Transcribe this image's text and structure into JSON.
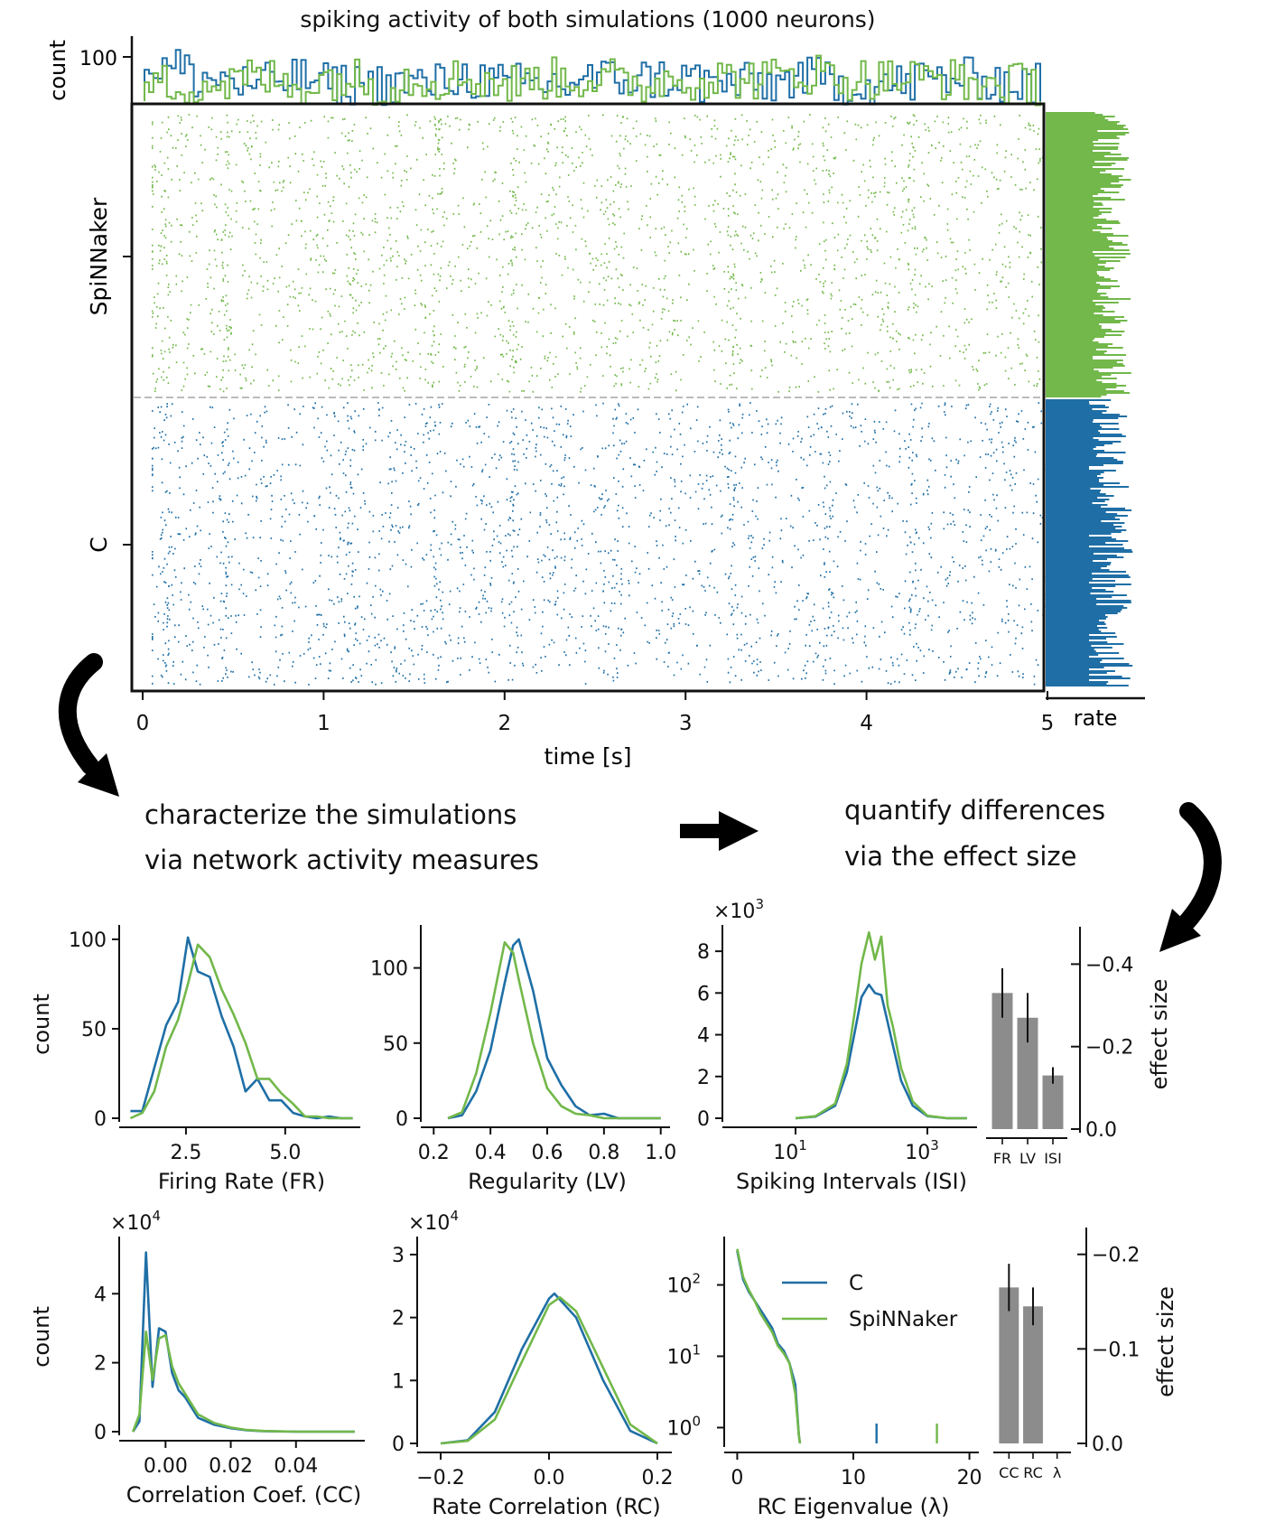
{
  "colors": {
    "c": "#1f6fa6",
    "spinnaker": "#72b84a",
    "bar": "#8c8c8c",
    "axis": "#111111",
    "arrow": "#000000"
  },
  "annotations": {
    "step1_line1": "characterize the simulations",
    "step1_line2": "via network activity measures",
    "step2_line1": "quantify differences",
    "step2_line2": "via the effect size"
  },
  "raster": {
    "title": "spiking activity of both simulations (1000 neurons)",
    "xlabel": "time [s]",
    "xticks": [
      "0",
      "1",
      "2",
      "3",
      "4",
      "5"
    ],
    "count_label": "count",
    "count_tick": "100",
    "rate_label": "rate",
    "ylabels": [
      "SpiNNaker",
      "C"
    ]
  },
  "panels": {
    "fr": {
      "xlabel": "Firing Rate (FR)",
      "ylabel": "count",
      "xticks": [
        "2.5",
        "5.0"
      ],
      "yticks": [
        "0",
        "50",
        "100"
      ]
    },
    "lv": {
      "xlabel": "Regularity (LV)",
      "xticks": [
        "0.2",
        "0.4",
        "0.6",
        "0.8",
        "1.0"
      ],
      "yticks": [
        "0",
        "50",
        "100"
      ]
    },
    "isi": {
      "xlabel": "Spiking Intervals (ISI)",
      "multiplier": "×10",
      "multiplier_exp": "3",
      "xticks_base": [
        "10",
        "10"
      ],
      "xticks_exp": [
        "1",
        "3"
      ],
      "yticks": [
        "0",
        "2",
        "4",
        "6",
        "8"
      ]
    },
    "es1": {
      "ylabel": "effect size",
      "categories": [
        "FR",
        "LV",
        "ISI"
      ],
      "yticks": [
        "0.0",
        "−0.2",
        "−0.4"
      ]
    },
    "cc": {
      "xlabel": "Correlation Coef. (CC)",
      "ylabel": "count",
      "multiplier": "×10",
      "multiplier_exp": "4",
      "xticks": [
        "0.00",
        "0.02",
        "0.04"
      ],
      "yticks": [
        "0",
        "2",
        "4"
      ]
    },
    "rc": {
      "xlabel": "Rate Correlation (RC)",
      "multiplier": "×10",
      "multiplier_exp": "4",
      "xticks": [
        "−0.2",
        "0.0",
        "0.2"
      ],
      "yticks": [
        "0",
        "1",
        "2",
        "3"
      ]
    },
    "eig": {
      "xlabel": "RC Eigenvalue (λ)",
      "xticks": [
        "0",
        "10",
        "20"
      ],
      "yticks_base": [
        "10",
        "10",
        "10"
      ],
      "yticks_exp": [
        "0",
        "1",
        "2"
      ],
      "legend": [
        "C",
        "SpiNNaker"
      ]
    },
    "es2": {
      "ylabel": "effect size",
      "categories": [
        "CC",
        "RC",
        "λ"
      ],
      "yticks": [
        "0.0",
        "−0.1",
        "−0.2"
      ]
    }
  },
  "chart_data": [
    {
      "type": "scatter",
      "title": "spiking activity of both simulations (1000 neurons)",
      "xlabel": "time [s]",
      "xlim": [
        0,
        5
      ],
      "series": [
        {
          "name": "SpiNNaker",
          "neurons": 500
        },
        {
          "name": "C",
          "neurons": 500
        }
      ],
      "count_histogram": {
        "ytick": 100,
        "x": [
          0.0,
          0.25,
          0.5,
          0.75,
          1.0,
          1.25,
          1.5,
          1.75,
          2.0,
          2.25,
          2.5,
          2.75,
          3.0,
          3.25,
          3.5,
          3.75,
          4.0,
          4.25,
          4.5,
          4.75,
          5.0
        ],
        "C": [
          98,
          96,
          95,
          96,
          95,
          95,
          95,
          96,
          95,
          95,
          96,
          96,
          96,
          95,
          95,
          96,
          95,
          95,
          96,
          96,
          95
        ],
        "SpiNNaker": [
          95,
          95,
          96,
          95,
          96,
          95,
          96,
          96,
          95,
          96,
          96,
          95,
          96,
          96,
          96,
          97,
          96,
          96,
          96,
          95,
          95
        ]
      }
    },
    {
      "type": "line",
      "xlabel": "Firing Rate (FR)",
      "ylabel": "count",
      "ylim": [
        0,
        105
      ],
      "xlim": [
        1.0,
        6.8
      ],
      "series": [
        {
          "name": "C",
          "x": [
            1.1,
            1.4,
            1.7,
            2.0,
            2.3,
            2.55,
            2.8,
            3.1,
            3.4,
            3.7,
            4.0,
            4.3,
            4.6,
            4.9,
            5.2,
            5.5,
            5.8,
            6.1,
            6.4,
            6.7
          ],
          "y": [
            4,
            4,
            28,
            52,
            65,
            101,
            82,
            79,
            57,
            40,
            15,
            22,
            10,
            10,
            3,
            1,
            0,
            1,
            0,
            0
          ]
        },
        {
          "name": "SpiNNaker",
          "x": [
            1.1,
            1.4,
            1.7,
            2.0,
            2.3,
            2.55,
            2.8,
            3.1,
            3.4,
            3.7,
            4.0,
            4.3,
            4.6,
            4.9,
            5.2,
            5.5,
            5.8,
            6.1,
            6.4,
            6.7
          ],
          "y": [
            0,
            3,
            15,
            40,
            55,
            75,
            97,
            90,
            72,
            58,
            42,
            22,
            22,
            14,
            8,
            1,
            1,
            0,
            0,
            0
          ]
        }
      ]
    },
    {
      "type": "line",
      "xlabel": "Regularity (LV)",
      "ylim": [
        0,
        125
      ],
      "xlim": [
        0.18,
        1.02
      ],
      "series": [
        {
          "name": "C",
          "x": [
            0.25,
            0.3,
            0.35,
            0.4,
            0.45,
            0.48,
            0.5,
            0.55,
            0.6,
            0.65,
            0.7,
            0.75,
            0.8,
            0.85,
            0.9,
            0.95,
            1.0
          ],
          "y": [
            0,
            2,
            18,
            45,
            90,
            115,
            119,
            85,
            40,
            22,
            8,
            2,
            3,
            0,
            0,
            0,
            0
          ]
        },
        {
          "name": "SpiNNaker",
          "x": [
            0.25,
            0.3,
            0.35,
            0.4,
            0.45,
            0.48,
            0.5,
            0.55,
            0.6,
            0.65,
            0.7,
            0.75,
            0.8,
            0.85,
            0.9,
            0.95,
            1.0
          ],
          "y": [
            0,
            4,
            30,
            70,
            117,
            110,
            92,
            50,
            20,
            8,
            3,
            2,
            0,
            0,
            0,
            0,
            0
          ]
        }
      ]
    },
    {
      "type": "line",
      "xlabel": "Spiking Intervals (ISI)",
      "x_scale": "log",
      "ylim": [
        0,
        9000
      ],
      "xlim": [
        1,
        5000
      ],
      "series": [
        {
          "name": "C",
          "x": [
            10,
            20,
            40,
            60,
            80,
            100,
            130,
            160,
            200,
            250,
            300,
            400,
            600,
            1000,
            2000,
            4000
          ],
          "y": [
            0,
            80,
            600,
            2200,
            4200,
            5800,
            6400,
            6000,
            5900,
            4600,
            3500,
            1800,
            600,
            100,
            0,
            0
          ]
        },
        {
          "name": "SpiNNaker",
          "x": [
            10,
            20,
            40,
            60,
            80,
            100,
            130,
            160,
            200,
            250,
            300,
            400,
            600,
            1000,
            2000,
            4000
          ],
          "y": [
            0,
            100,
            700,
            2600,
            5200,
            7400,
            8900,
            7600,
            8700,
            5400,
            4400,
            2400,
            800,
            120,
            0,
            0
          ]
        }
      ]
    },
    {
      "type": "bar",
      "ylabel": "effect size",
      "categories": [
        "FR",
        "LV",
        "ISI"
      ],
      "values": [
        -0.33,
        -0.27,
        -0.13
      ],
      "errors": [
        0.06,
        0.06,
        0.02
      ],
      "ylim": [
        0,
        -0.46
      ]
    },
    {
      "type": "line",
      "xlabel": "Correlation Coef. (CC)",
      "ylabel": "count",
      "ylim": [
        0,
        55000
      ],
      "xlim": [
        -0.012,
        0.06
      ],
      "series": [
        {
          "name": "C",
          "x": [
            -0.01,
            -0.008,
            -0.006,
            -0.004,
            -0.002,
            0.0,
            0.002,
            0.004,
            0.006,
            0.008,
            0.01,
            0.015,
            0.02,
            0.025,
            0.03,
            0.04,
            0.05,
            0.058
          ],
          "y": [
            0,
            3000,
            52000,
            13000,
            30000,
            29000,
            17000,
            12000,
            10000,
            7000,
            4000,
            2000,
            1000,
            400,
            150,
            0,
            0,
            0
          ]
        },
        {
          "name": "SpiNNaker",
          "x": [
            -0.01,
            -0.008,
            -0.006,
            -0.004,
            -0.002,
            0.0,
            0.002,
            0.004,
            0.006,
            0.008,
            0.01,
            0.015,
            0.02,
            0.025,
            0.03,
            0.04,
            0.05,
            0.058
          ],
          "y": [
            0,
            5000,
            29000,
            15000,
            27000,
            28000,
            19000,
            14000,
            11000,
            8000,
            5000,
            2500,
            1200,
            500,
            200,
            0,
            0,
            0
          ]
        }
      ]
    },
    {
      "type": "line",
      "xlabel": "Rate Correlation (RC)",
      "ylim": [
        0,
        32000
      ],
      "xlim": [
        -0.23,
        0.22
      ],
      "series": [
        {
          "name": "C",
          "x": [
            -0.2,
            -0.15,
            -0.1,
            -0.05,
            0.0,
            0.01,
            0.05,
            0.1,
            0.15,
            0.2
          ],
          "y": [
            0,
            500,
            5000,
            15000,
            23000,
            23800,
            20000,
            10000,
            2000,
            0
          ]
        },
        {
          "name": "SpiNNaker",
          "x": [
            -0.2,
            -0.15,
            -0.1,
            -0.05,
            0.0,
            0.02,
            0.05,
            0.1,
            0.15,
            0.2
          ],
          "y": [
            0,
            400,
            3800,
            13000,
            22000,
            23200,
            21000,
            12000,
            3000,
            0
          ]
        }
      ]
    },
    {
      "type": "line",
      "xlabel": "RC Eigenvalue (λ)",
      "y_scale": "log",
      "ylim": [
        0.6,
        400
      ],
      "xlim": [
        -0.5,
        20.5
      ],
      "series": [
        {
          "name": "C",
          "x": [
            0.0,
            0.5,
            1.0,
            1.5,
            2.0,
            3.0,
            3.5,
            4.0,
            4.5,
            5.0,
            5.3,
            5.4
          ],
          "y": [
            300,
            120,
            80,
            60,
            45,
            25,
            15,
            12,
            8,
            4,
            0.8,
            0.6
          ],
          "outlier": 12.0
        },
        {
          "name": "SpiNNaker",
          "x": [
            0.0,
            0.5,
            1.0,
            1.5,
            2.0,
            3.0,
            3.5,
            4.0,
            4.5,
            5.0,
            5.3,
            5.4
          ],
          "y": [
            320,
            130,
            85,
            60,
            40,
            22,
            14,
            11,
            8,
            3,
            0.8,
            0.6
          ],
          "outlier": 17.2
        }
      ]
    },
    {
      "type": "bar",
      "ylabel": "effect size",
      "categories": [
        "CC",
        "RC",
        "λ"
      ],
      "values": [
        -0.165,
        -0.145,
        0.0
      ],
      "errors": [
        0.025,
        0.02,
        0.0
      ],
      "ylim": [
        0,
        -0.215
      ]
    }
  ]
}
